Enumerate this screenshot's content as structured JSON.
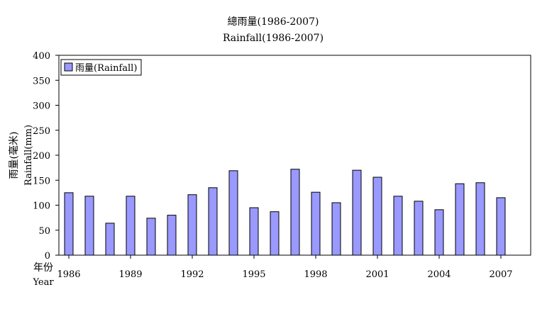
{
  "chart_data": {
    "type": "bar",
    "title": "總雨量(1986-2007)",
    "subtitle": "Rainfall(1986-2007)",
    "ylabel_zh": "雨量(毫米)",
    "ylabel_en": "Rainfall(mm)",
    "xlabel_zh": "年份",
    "xlabel_en": "Year",
    "ylim": [
      0,
      400
    ],
    "yticks": [
      "0",
      "50",
      "100",
      "150",
      "200",
      "250",
      "300",
      "350",
      "400"
    ],
    "categories": [
      "1986",
      "1987",
      "1988",
      "1989",
      "1990",
      "1991",
      "1992",
      "1993",
      "1994",
      "1995",
      "1996",
      "1997",
      "1998",
      "1999",
      "2000",
      "2001",
      "2002",
      "2003",
      "2004",
      "2005",
      "2006",
      "2007"
    ],
    "xtick_labels": [
      "1986",
      "1989",
      "1992",
      "1995",
      "1998",
      "2001",
      "2004",
      "2007"
    ],
    "series": [
      {
        "name": "雨量(Rainfall)",
        "color": "#9999ff",
        "values": [
          125,
          118,
          64,
          118,
          74,
          80,
          121,
          135,
          169,
          95,
          87,
          172,
          126,
          105,
          170,
          156,
          118,
          108,
          91,
          143,
          145,
          115
        ]
      }
    ],
    "grid": false,
    "legend": "top-left"
  }
}
